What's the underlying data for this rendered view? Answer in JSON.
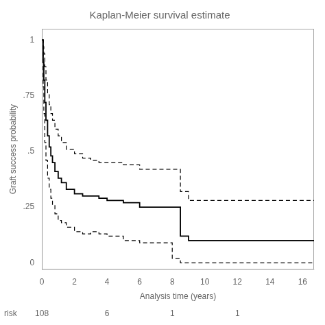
{
  "chart_data": {
    "type": "step",
    "title": "Kaplan-Meier survival estimate",
    "xlabel": "Analysis time (years)",
    "ylabel": "Graft success probability",
    "xlim": [
      0,
      16.7
    ],
    "ylim": [
      -0.03,
      1.05
    ],
    "xticks": [
      0,
      2,
      4,
      6,
      8,
      10,
      12,
      14,
      16
    ],
    "yticks": [
      0,
      {
        "value": 0.25,
        "label": ".25"
      },
      {
        "value": 0.5,
        "label": ".5"
      },
      {
        "value": 0.75,
        "label": ".75"
      },
      1
    ],
    "grid": false,
    "series": [
      {
        "color": "#000000",
        "line_style": "solid",
        "x": [
          0.0,
          0.08,
          0.12,
          0.18,
          0.25,
          0.35,
          0.45,
          0.55,
          0.65,
          0.8,
          1.0,
          1.2,
          1.5,
          2.0,
          2.5,
          3.0,
          3.5,
          4.0,
          5.0,
          5.5,
          6.0,
          8.0,
          8.5,
          9.0,
          16.7
        ],
        "values": [
          1.0,
          0.9,
          0.82,
          0.72,
          0.64,
          0.57,
          0.52,
          0.48,
          0.45,
          0.41,
          0.38,
          0.36,
          0.33,
          0.31,
          0.3,
          0.3,
          0.29,
          0.28,
          0.27,
          0.27,
          0.25,
          0.25,
          0.12,
          0.1,
          0.1
        ]
      },
      {
        "color": "#000000",
        "line_style": "dashed",
        "x": [
          0.0,
          0.08,
          0.12,
          0.18,
          0.25,
          0.35,
          0.45,
          0.55,
          0.65,
          0.8,
          1.0,
          1.2,
          1.5,
          2.0,
          2.5,
          3.0,
          3.5,
          4.0,
          5.0,
          5.5,
          6.0,
          8.0,
          8.5,
          9.0,
          16.7
        ],
        "values": [
          1.0,
          0.97,
          0.94,
          0.88,
          0.82,
          0.76,
          0.71,
          0.67,
          0.64,
          0.6,
          0.57,
          0.54,
          0.51,
          0.49,
          0.47,
          0.46,
          0.45,
          0.45,
          0.44,
          0.44,
          0.42,
          0.42,
          0.32,
          0.28,
          0.28
        ]
      },
      {
        "color": "#000000",
        "line_style": "dashed",
        "x": [
          0.0,
          0.08,
          0.12,
          0.18,
          0.25,
          0.35,
          0.45,
          0.55,
          0.65,
          0.8,
          1.0,
          1.2,
          1.5,
          2.0,
          2.5,
          3.0,
          3.5,
          4.0,
          5.0,
          5.5,
          6.0,
          7.5,
          8.0,
          8.5,
          9.0,
          16.7
        ],
        "values": [
          1.0,
          0.79,
          0.67,
          0.54,
          0.46,
          0.38,
          0.33,
          0.29,
          0.26,
          0.22,
          0.19,
          0.18,
          0.16,
          0.14,
          0.13,
          0.14,
          0.13,
          0.12,
          0.1,
          0.1,
          0.09,
          0.09,
          0.02,
          0.0,
          0.0,
          0.0
        ]
      }
    ],
    "risk_table": {
      "label": "risk",
      "x": [
        0,
        4,
        8,
        12
      ],
      "values": [
        108,
        6,
        1,
        1
      ]
    }
  }
}
